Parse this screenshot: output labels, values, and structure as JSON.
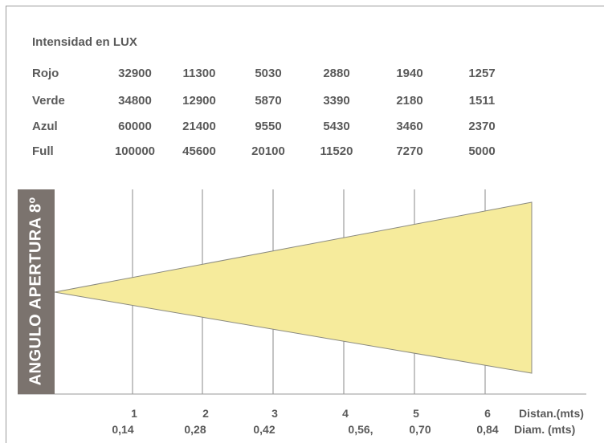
{
  "lux_table": {
    "title": "Intensidad en LUX",
    "rows": [
      {
        "label": "Rojo",
        "values": [
          "32900",
          "11300",
          "5030",
          "2880",
          "1940",
          "1257"
        ]
      },
      {
        "label": "Verde",
        "values": [
          "34800",
          "12900",
          "5870",
          "3390",
          "2180",
          "1511"
        ]
      },
      {
        "label": "Azul",
        "values": [
          "60000",
          "21400",
          "9550",
          "5430",
          "3460",
          "2370"
        ]
      },
      {
        "label": "Full",
        "values": [
          "100000",
          "45600",
          "20100",
          "11520",
          "7270",
          "5000"
        ]
      }
    ]
  },
  "beam": {
    "angle_label": "ANGULO APERTURA 8º",
    "fill_color": "#f6eb9c",
    "band_color": "#7b736e",
    "distances": [
      "1",
      "2",
      "3",
      "4",
      "5",
      "6"
    ],
    "diameters": [
      "0,14",
      "0,28",
      "0,42",
      "0,56,",
      "0,70",
      "0,84"
    ],
    "distance_label": "Distan.(mts)",
    "diameter_label": "Diam. (mts)"
  }
}
